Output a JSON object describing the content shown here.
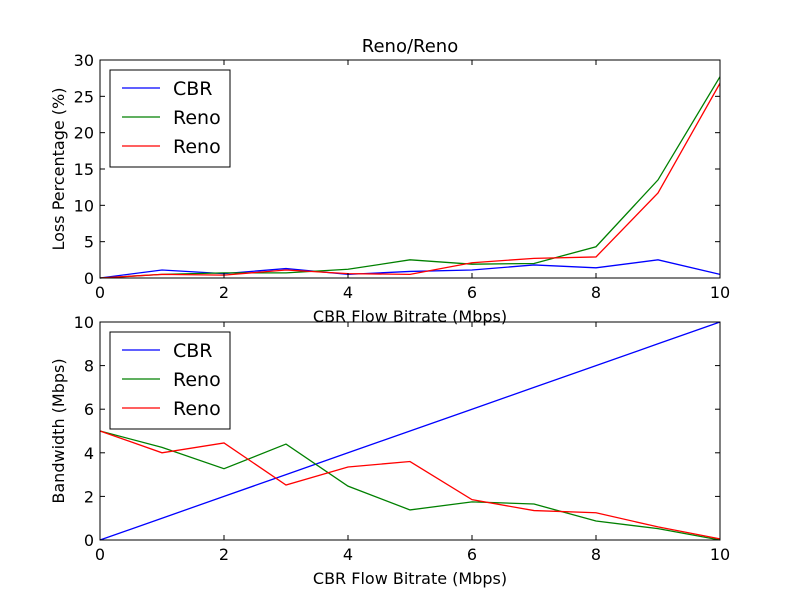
{
  "chart_data": [
    {
      "type": "line",
      "title": "Reno/Reno",
      "xlabel": "CBR Flow Bitrate (Mbps)",
      "ylabel": "Loss Percentage (%)",
      "xlim": [
        0,
        10
      ],
      "ylim": [
        0,
        30
      ],
      "xticks": [
        "0",
        "2",
        "4",
        "6",
        "8",
        "10"
      ],
      "yticks": [
        "0",
        "5",
        "10",
        "15",
        "20",
        "25",
        "30"
      ],
      "legend_position": "top-left",
      "grid": false,
      "x": [
        0,
        1,
        2,
        3,
        4,
        5,
        6,
        7,
        8,
        9,
        10
      ],
      "series": [
        {
          "name": "CBR",
          "color": "#0000ff",
          "values": [
            0,
            1.1,
            0.6,
            1.3,
            0.5,
            0.9,
            1.1,
            1.8,
            1.4,
            2.5,
            0.5
          ]
        },
        {
          "name": "Reno",
          "color": "#008000",
          "values": [
            0,
            0.5,
            0.7,
            0.7,
            1.2,
            2.5,
            1.9,
            2.0,
            4.3,
            13.5,
            27.7
          ]
        },
        {
          "name": "Reno",
          "color": "#ff0000",
          "values": [
            0,
            0.5,
            0.4,
            1.1,
            0.6,
            0.5,
            2.1,
            2.7,
            2.9,
            11.7,
            26.8
          ]
        }
      ]
    },
    {
      "type": "line",
      "title": "",
      "xlabel": "CBR Flow Bitrate (Mbps)",
      "ylabel": "Bandwidth (Mbps)",
      "xlim": [
        0,
        10
      ],
      "ylim": [
        0,
        10
      ],
      "xticks": [
        "0",
        "2",
        "4",
        "6",
        "8",
        "10"
      ],
      "yticks": [
        "0",
        "2",
        "4",
        "6",
        "8",
        "10"
      ],
      "legend_position": "top-left",
      "grid": false,
      "x": [
        0,
        1,
        2,
        3,
        4,
        5,
        6,
        7,
        8,
        9,
        10
      ],
      "series": [
        {
          "name": "CBR",
          "color": "#0000ff",
          "values": [
            0,
            1,
            2,
            3,
            4,
            5,
            6,
            7,
            8,
            9,
            10
          ]
        },
        {
          "name": "Reno",
          "color": "#008000",
          "values": [
            5.0,
            4.25,
            3.27,
            4.4,
            2.47,
            1.38,
            1.75,
            1.65,
            0.87,
            0.52,
            0.0
          ]
        },
        {
          "name": "Reno",
          "color": "#ff0000",
          "values": [
            5.0,
            4.0,
            4.45,
            2.52,
            3.35,
            3.6,
            1.85,
            1.35,
            1.25,
            0.6,
            0.05
          ]
        }
      ]
    }
  ]
}
